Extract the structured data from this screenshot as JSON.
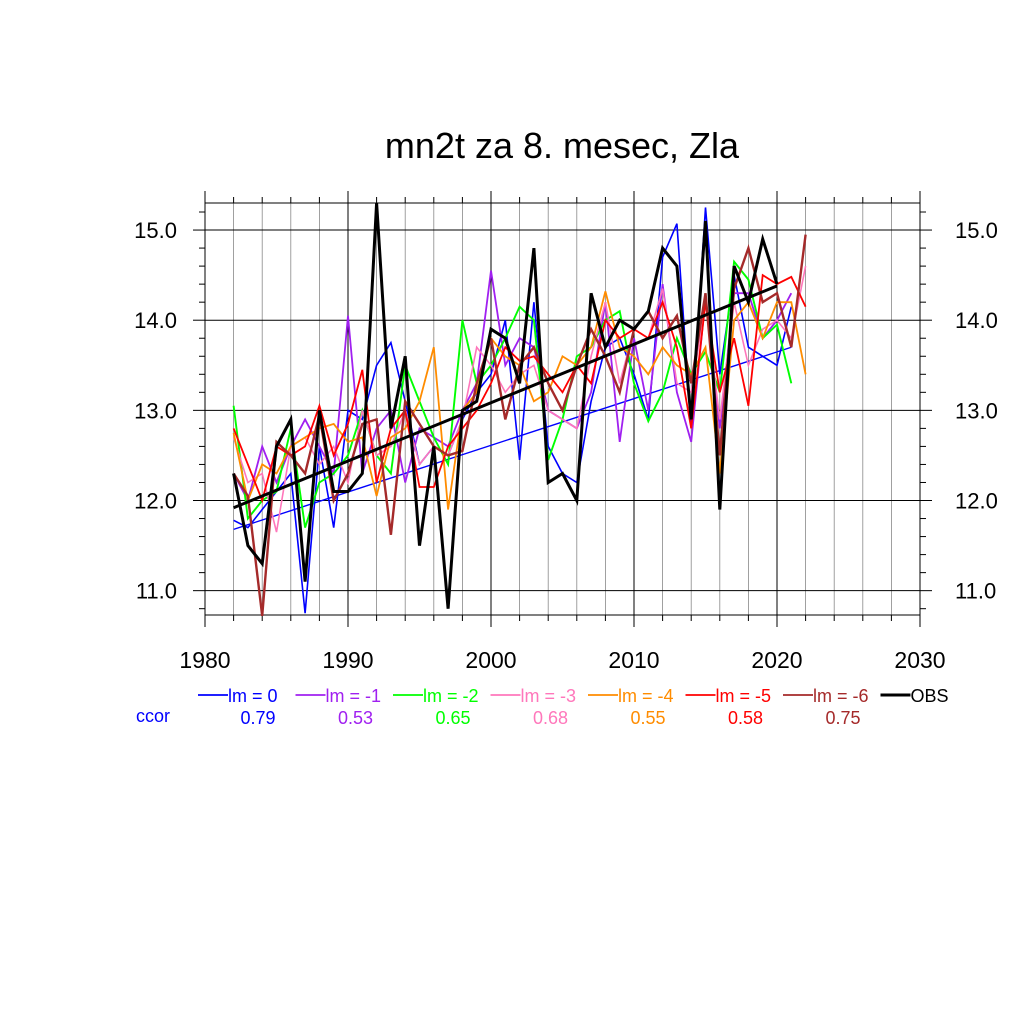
{
  "chart_data": {
    "type": "line",
    "title": "mn2t za 8. mesec, Zla",
    "xlabel": "",
    "ylabel": "",
    "xlim": [
      1980,
      2030
    ],
    "ylim": [
      10.73,
      15.3
    ],
    "x_ticks": [
      "1980",
      "1990",
      "2000",
      "2010",
      "2020",
      "2030"
    ],
    "y_ticks": [
      "11.0",
      "12.0",
      "13.0",
      "14.0",
      "15.0"
    ],
    "grid": true,
    "legend_position": "bottom",
    "ccor_label": "ccor",
    "series": [
      {
        "name": "lm = 0",
        "color": "#0000ff",
        "width": 1.6,
        "ccor": "0.79",
        "start": 1982,
        "values": [
          11.78,
          11.7,
          11.9,
          12.1,
          12.3,
          10.75,
          12.6,
          11.7,
          13.0,
          12.9,
          13.5,
          13.75,
          13.1,
          12.4,
          12.6,
          12.5,
          12.9,
          13.2,
          13.4,
          14.0,
          12.45,
          14.2,
          12.6,
          12.3,
          12.2,
          13.1,
          13.7,
          13.8,
          13.4,
          12.9,
          14.7,
          15.07,
          12.8,
          15.25,
          13.4,
          14.5,
          13.7,
          13.6,
          13.5,
          14.15
        ],
        "trend": [
          11.68,
          13.7
        ]
      },
      {
        "name": "lm = -1",
        "color": "#a020f0",
        "width": 1.8,
        "ccor": "0.53",
        "start": 1982,
        "values": [
          12.3,
          12.0,
          12.6,
          12.2,
          12.6,
          12.9,
          12.6,
          12.3,
          14.05,
          12.3,
          12.8,
          13.0,
          12.2,
          12.8,
          12.7,
          12.6,
          13.0,
          13.3,
          14.55,
          13.5,
          13.8,
          13.7,
          13.0,
          12.9,
          12.8,
          13.2,
          14.2,
          12.65,
          13.8,
          13.0,
          14.4,
          13.2,
          12.65,
          14.25,
          12.8,
          14.3,
          14.3,
          13.8,
          14.0,
          14.3
        ]
      },
      {
        "name": "lm = -2",
        "color": "#00ff00",
        "width": 1.9,
        "ccor": "0.65",
        "start": 1982,
        "values": [
          13.05,
          11.8,
          12.0,
          12.1,
          12.8,
          11.7,
          12.2,
          12.3,
          12.5,
          13.0,
          12.5,
          12.3,
          13.5,
          13.1,
          12.7,
          12.4,
          14.0,
          13.3,
          13.5,
          13.8,
          14.15,
          14.0,
          12.45,
          12.9,
          13.6,
          13.7,
          14.0,
          14.1,
          13.3,
          12.88,
          13.2,
          13.8,
          13.4,
          13.65,
          13.2,
          14.65,
          14.45,
          13.8,
          13.95,
          13.3
        ]
      },
      {
        "name": "lm = -3",
        "color": "#ff77bb",
        "width": 1.6,
        "ccor": "0.68",
        "start": 1982,
        "values": [
          12.7,
          12.2,
          12.3,
          11.65,
          12.6,
          12.7,
          12.4,
          12.6,
          12.2,
          13.0,
          12.5,
          12.6,
          13.0,
          12.4,
          12.6,
          12.5,
          12.9,
          13.7,
          13.5,
          13.2,
          13.4,
          13.5,
          13.0,
          12.9,
          12.8,
          13.6,
          14.2,
          13.3,
          13.9,
          13.8,
          14.35,
          13.3,
          13.2,
          14.2,
          12.9,
          14.2,
          13.5,
          13.9,
          14.0,
          13.8,
          14.6
        ]
      },
      {
        "name": "lm = -4",
        "color": "#ff8c00",
        "width": 1.8,
        "ccor": "0.55",
        "start": 1982,
        "values": [
          12.75,
          12.0,
          12.4,
          12.3,
          12.6,
          12.7,
          12.8,
          12.85,
          12.65,
          12.7,
          12.05,
          12.7,
          12.8,
          13.1,
          13.7,
          11.9,
          13.0,
          13.2,
          13.8,
          13.6,
          13.5,
          13.1,
          13.2,
          13.6,
          13.5,
          13.7,
          14.32,
          13.7,
          13.6,
          13.4,
          13.7,
          13.5,
          13.4,
          13.7,
          12.3,
          14.0,
          14.2,
          13.8,
          14.2,
          14.2,
          13.4
        ]
      },
      {
        "name": "lm = -5",
        "color": "#ff0000",
        "width": 1.8,
        "ccor": "0.58",
        "start": 1982,
        "values": [
          12.8,
          12.4,
          12.0,
          12.6,
          12.5,
          12.6,
          13.05,
          12.5,
          12.85,
          13.45,
          12.2,
          12.8,
          13.0,
          12.15,
          12.15,
          12.6,
          12.8,
          13.0,
          13.3,
          13.7,
          13.55,
          13.6,
          13.4,
          13.2,
          13.5,
          13.3,
          14.0,
          13.8,
          13.9,
          13.8,
          14.2,
          13.7,
          12.8,
          14.2,
          13.2,
          13.8,
          13.05,
          14.5,
          14.4,
          14.48,
          14.15
        ]
      },
      {
        "name": "lm = -6",
        "color": "#a52a2a",
        "width": 2.4,
        "ccor": "0.75",
        "start": 1982,
        "values": [
          12.3,
          12.05,
          10.72,
          12.65,
          12.5,
          12.3,
          12.95,
          12.0,
          12.3,
          12.85,
          12.9,
          11.62,
          13.1,
          12.85,
          12.6,
          12.5,
          12.55,
          13.3,
          13.8,
          12.9,
          13.5,
          13.7,
          13.3,
          13.0,
          13.5,
          13.9,
          13.6,
          13.2,
          13.9,
          14.1,
          13.8,
          14.05,
          13.3,
          14.3,
          12.5,
          14.35,
          14.8,
          14.2,
          14.3,
          13.7,
          14.95
        ]
      },
      {
        "name": "OBS",
        "color": "#000000",
        "width": 3.0,
        "ccor": "",
        "start": 1982,
        "values": [
          12.3,
          11.5,
          11.3,
          12.6,
          12.9,
          11.1,
          13.0,
          12.1,
          12.1,
          12.3,
          15.3,
          12.8,
          13.6,
          11.5,
          12.6,
          10.8,
          13.0,
          13.1,
          13.9,
          13.8,
          13.3,
          14.8,
          12.2,
          12.3,
          12.0,
          14.3,
          13.7,
          14.0,
          13.9,
          14.1,
          14.8,
          14.6,
          12.9,
          15.1,
          11.9,
          14.6,
          14.2,
          14.9,
          14.4
        ],
        "trend": [
          11.92,
          14.38
        ]
      }
    ]
  }
}
